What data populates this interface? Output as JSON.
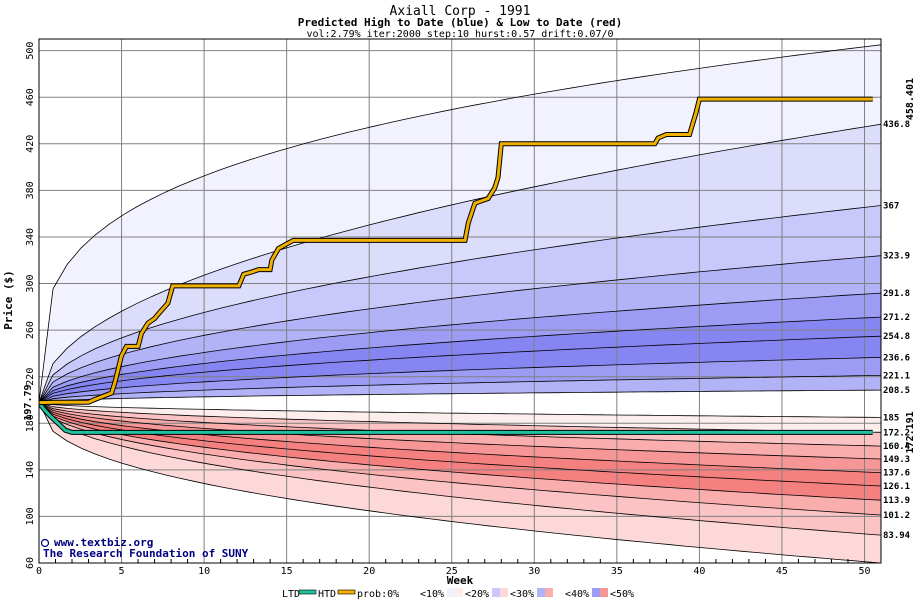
{
  "chart_data": {
    "type": "area",
    "title": "Axiall Corp - 1991",
    "subtitle": "Predicted High to Date (blue) &  Low to Date (red)",
    "params": "vol:2.79% iter:2000 step:10 hurst:0.57 drift:0.07/0",
    "xlabel": "Week",
    "ylabel": "Price ($)",
    "xlim": [
      0,
      51
    ],
    "ylim": [
      60,
      510
    ],
    "x_ticks": [
      0,
      5,
      10,
      15,
      20,
      25,
      30,
      35,
      40,
      45,
      50
    ],
    "y_ticks": [
      60,
      100,
      140,
      180,
      220,
      260,
      300,
      340,
      380,
      420,
      460,
      500
    ],
    "start_price": 197.79,
    "start_label": "197.79",
    "final_high_label": "458.401",
    "final_low_label": "172.191",
    "high_percentile_end_labels": [
      "436.8",
      "367",
      "323.9",
      "291.8",
      "271.2",
      "254.8",
      "236.6",
      "221.1",
      "208.5"
    ],
    "high_percentile_end_values": [
      436.8,
      367,
      323.9,
      291.8,
      271.2,
      254.8,
      236.6,
      221.1,
      208.5
    ],
    "low_percentile_end_labels": [
      "185",
      "172.2",
      "160.4",
      "149.3",
      "137.6",
      "126.1",
      "113.9",
      "101.2",
      "83.94"
    ],
    "low_percentile_end_values": [
      185,
      172.2,
      160.4,
      149.3,
      137.6,
      126.1,
      113.9,
      101.2,
      83.94
    ],
    "high_envelope_end": 505,
    "low_envelope_end": 60,
    "htd_series": {
      "name": "HTD",
      "x": [
        0,
        1,
        2,
        3,
        3.3,
        4.4,
        4.6,
        5.0,
        5.3,
        6.0,
        6.2,
        6.6,
        7.0,
        7.3,
        7.8,
        8.1,
        12.1,
        12.4,
        12.9,
        13.3,
        14.0,
        14.1,
        14.5,
        15.0,
        15.4,
        25.8,
        26.0,
        26.4,
        27.2,
        27.6,
        27.8,
        28.0,
        37.3,
        37.5,
        38.0,
        39.4,
        39.8,
        40.0,
        50.5
      ],
      "values": [
        197.79,
        198,
        198,
        198,
        200,
        206,
        215,
        238,
        246,
        246,
        257,
        266,
        270,
        275,
        283,
        298,
        298,
        308,
        310,
        312,
        312,
        320,
        330,
        334,
        337,
        337,
        352,
        369,
        373,
        382,
        391,
        420,
        420,
        425,
        428,
        428,
        447,
        458.401,
        458.401
      ]
    },
    "ltd_series": {
      "name": "LTD",
      "x": [
        0,
        0.3,
        0.7,
        1.0,
        1.3,
        1.6,
        2.0,
        50.5
      ],
      "values": [
        197.79,
        192,
        186,
        182,
        178,
        174,
        172.191,
        172.191
      ]
    },
    "legend": {
      "ltd": "LTD",
      "htd": "HTD",
      "prob": "prob:0%",
      "p10": "<10%",
      "p20": "<20%",
      "p30": "<30%",
      "p40": "<40%",
      "p50": "<50%"
    },
    "grid": true
  },
  "credit": {
    "line1": "www.textbiz.org",
    "line2": "The Research Foundation of SUNY"
  },
  "colors": {
    "high_bands": [
      "#f2f2fe",
      "#dcdcfb",
      "#c8c8fa",
      "#b2b2f7",
      "#9c9cf4",
      "#8686f2"
    ],
    "low_bands": [
      "#fdeeee",
      "#fcd8d8",
      "#fbc3c3",
      "#f9adad",
      "#f79696",
      "#f58080"
    ],
    "htd": "#f0b000",
    "ltd": "#20c0a0",
    "grid": "#808080",
    "start_label": "#008040",
    "high_label": "#a06000",
    "low_label": "#00a080"
  }
}
